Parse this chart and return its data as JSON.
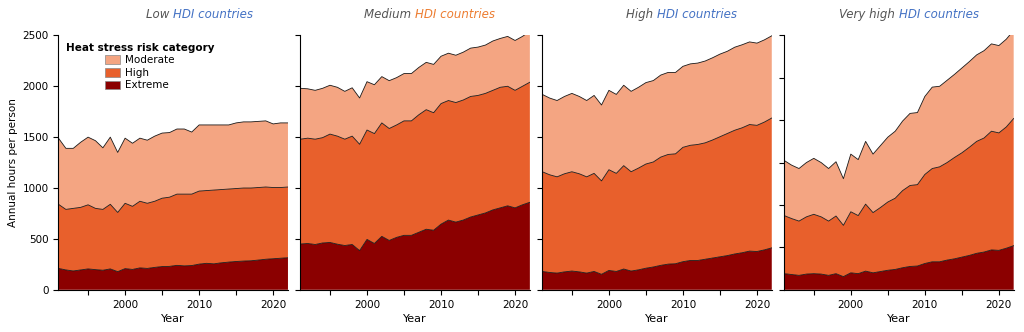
{
  "years": [
    1991,
    1992,
    1993,
    1994,
    1995,
    1996,
    1997,
    1998,
    1999,
    2000,
    2001,
    2002,
    2003,
    2004,
    2005,
    2006,
    2007,
    2008,
    2009,
    2010,
    2011,
    2012,
    2013,
    2014,
    2015,
    2016,
    2017,
    2018,
    2019,
    2020,
    2021,
    2022
  ],
  "panels": [
    {
      "title_prefix": "Low ",
      "title_hdi": "HDI countries",
      "title_prefix_color": "#555555",
      "title_hdi_color": "#4472C4",
      "ylim": [
        0,
        2500
      ],
      "yticks": [
        0,
        500,
        1000,
        1500,
        2000,
        2500
      ],
      "show_ylabel": true,
      "extreme": [
        210,
        195,
        185,
        195,
        205,
        198,
        192,
        205,
        178,
        208,
        200,
        215,
        210,
        220,
        228,
        230,
        240,
        235,
        238,
        252,
        260,
        255,
        265,
        272,
        278,
        282,
        285,
        292,
        300,
        305,
        310,
        315
      ],
      "high": [
        840,
        790,
        800,
        810,
        835,
        800,
        790,
        840,
        760,
        850,
        820,
        870,
        850,
        870,
        900,
        910,
        940,
        940,
        940,
        970,
        975,
        980,
        985,
        990,
        995,
        1000,
        1000,
        1005,
        1010,
        1005,
        1005,
        1010
      ],
      "moderate": [
        1490,
        1390,
        1390,
        1450,
        1500,
        1465,
        1395,
        1500,
        1350,
        1490,
        1440,
        1490,
        1470,
        1510,
        1540,
        1545,
        1580,
        1580,
        1550,
        1620,
        1620,
        1620,
        1620,
        1620,
        1640,
        1650,
        1650,
        1655,
        1660,
        1630,
        1640,
        1640
      ]
    },
    {
      "title_prefix": "Medium ",
      "title_hdi": "HDI countries",
      "title_prefix_color": "#555555",
      "title_hdi_color": "#ED7D31",
      "ylim": [
        0,
        2500
      ],
      "yticks": [
        0,
        500,
        1000,
        1500,
        2000,
        2500
      ],
      "show_ylabel": false,
      "extreme": [
        450,
        455,
        445,
        460,
        465,
        448,
        435,
        445,
        385,
        495,
        455,
        525,
        485,
        515,
        535,
        535,
        565,
        595,
        585,
        645,
        685,
        665,
        685,
        715,
        735,
        755,
        785,
        805,
        825,
        805,
        835,
        860
      ],
      "high": [
        1480,
        1490,
        1480,
        1495,
        1530,
        1510,
        1480,
        1510,
        1430,
        1570,
        1535,
        1640,
        1585,
        1620,
        1660,
        1660,
        1720,
        1770,
        1740,
        1830,
        1860,
        1840,
        1865,
        1900,
        1910,
        1930,
        1960,
        1990,
        2000,
        1960,
        2000,
        2040
      ],
      "moderate": [
        1980,
        1975,
        1960,
        1980,
        2010,
        1990,
        1950,
        1985,
        1885,
        2045,
        2015,
        2095,
        2055,
        2085,
        2125,
        2125,
        2185,
        2235,
        2215,
        2295,
        2325,
        2305,
        2335,
        2375,
        2385,
        2405,
        2445,
        2470,
        2490,
        2450,
        2490,
        2540
      ]
    },
    {
      "title_prefix": "High ",
      "title_hdi": "HDI countries",
      "title_prefix_color": "#555555",
      "title_hdi_color": "#4472C4",
      "ylim": [
        0,
        1250
      ],
      "yticks": [
        0,
        250,
        500,
        750,
        1000,
        1250
      ],
      "show_ylabel": false,
      "extreme": [
        90,
        85,
        82,
        88,
        92,
        88,
        82,
        90,
        76,
        95,
        90,
        102,
        92,
        98,
        106,
        112,
        120,
        126,
        128,
        138,
        144,
        144,
        150,
        156,
        162,
        168,
        176,
        182,
        190,
        188,
        196,
        206
      ],
      "high": [
        580,
        565,
        555,
        570,
        580,
        570,
        555,
        572,
        535,
        590,
        572,
        610,
        580,
        598,
        618,
        628,
        652,
        665,
        668,
        700,
        710,
        714,
        722,
        736,
        752,
        768,
        784,
        796,
        812,
        808,
        824,
        844
      ],
      "moderate": [
        960,
        942,
        930,
        950,
        965,
        950,
        930,
        955,
        908,
        980,
        960,
        1005,
        975,
        995,
        1018,
        1028,
        1055,
        1068,
        1068,
        1098,
        1110,
        1114,
        1124,
        1140,
        1158,
        1172,
        1192,
        1204,
        1218,
        1212,
        1228,
        1248
      ]
    },
    {
      "title_prefix": "Very high ",
      "title_hdi": "HDI countries",
      "title_prefix_color": "#555555",
      "title_hdi_color": "#4472C4",
      "ylim": [
        0,
        600
      ],
      "yticks": [
        0,
        100,
        200,
        300,
        400,
        500,
        600
      ],
      "show_ylabel": false,
      "extreme": [
        38,
        36,
        34,
        37,
        38,
        37,
        34,
        38,
        31,
        40,
        38,
        44,
        40,
        43,
        46,
        48,
        52,
        55,
        56,
        62,
        66,
        66,
        70,
        73,
        77,
        81,
        86,
        89,
        94,
        93,
        98,
        104
      ],
      "high": [
        175,
        168,
        162,
        172,
        178,
        172,
        162,
        174,
        152,
        184,
        175,
        202,
        182,
        194,
        207,
        216,
        234,
        246,
        248,
        272,
        286,
        290,
        300,
        312,
        323,
        336,
        350,
        358,
        374,
        370,
        384,
        404
      ],
      "moderate": [
        305,
        294,
        286,
        300,
        310,
        300,
        286,
        302,
        262,
        320,
        307,
        350,
        320,
        340,
        360,
        374,
        398,
        416,
        418,
        456,
        478,
        480,
        494,
        508,
        523,
        538,
        554,
        564,
        580,
        576,
        591,
        612
      ]
    }
  ],
  "colors": {
    "extreme": "#8B0000",
    "high": "#E8602C",
    "moderate": "#F4A582"
  },
  "edge_color": "#1a1a1a",
  "legend_title": "Heat stress risk category",
  "ylabel": "Annual hours per person",
  "xlabel": "Year"
}
